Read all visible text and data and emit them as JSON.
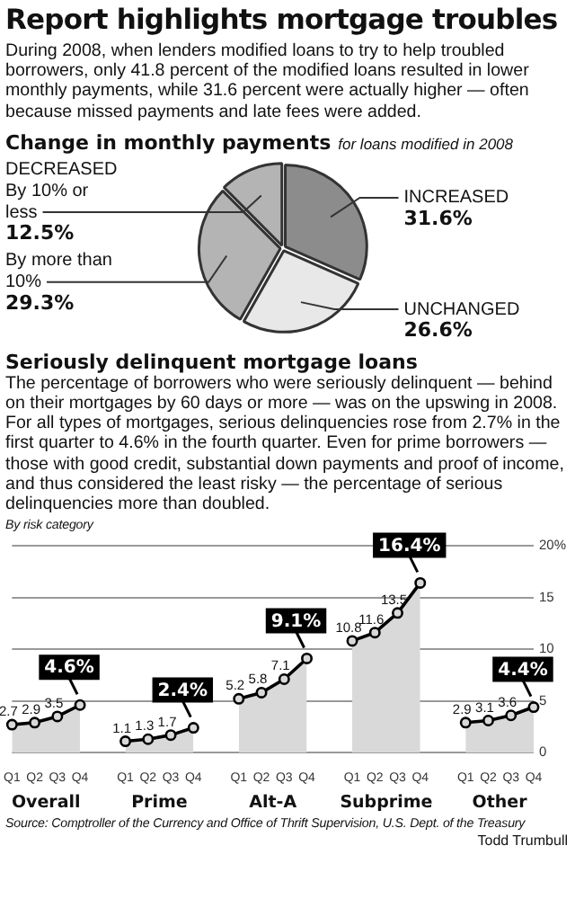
{
  "chart_data": [
    {
      "type": "pie",
      "title": "Report highlights mortgage troubles",
      "subtitle": "During 2008, when lenders modified loans to try to help troubled borrowers, only 41.8 percent of the modified loans resulted in lower monthly payments, while 31.6 percent were actually higher — often because missed payments and late fees were added.",
      "annotations": [
        "Change in monthly payments",
        "for loans modified in 2008",
        "DECREASED"
      ],
      "categories": [
        "INCREASED",
        "UNCHANGED",
        "By more than 10%",
        "By 10% or less"
      ],
      "values": [
        31.6,
        26.6,
        29.3,
        12.5
      ],
      "value_labels": [
        "31.6%",
        "26.6%",
        "29.3%",
        "12.5%"
      ],
      "colors": [
        "#8c8c8c",
        "#e8e8e8",
        "#b4b4b4",
        "#b4b4b4"
      ],
      "legend": false
    },
    {
      "type": "area",
      "title": "Seriously delinquent mortgage loans",
      "subtitle": "The percentage of borrowers who were seriously delinquent — behind on their mortgages by 60 days or more — was on the upswing in 2008. For all types of mortgages, serious delinquencies rose from 2.7% in the first quarter to 4.6% in the fourth quarter. Even for prime borrowers — those with good credit, substantial down payments and proof of income, and thus considered the least risky — the percentage of serious delinquencies more than doubled.",
      "annotations": [
        "By risk category",
        "Source: Comptroller of the Currency and Office of Thrift Supervision, U.S. Dept. of the Treasury",
        "Todd Trumbull"
      ],
      "categories": [
        "Q1",
        "Q2",
        "Q3",
        "Q4",
        null,
        "Q1",
        "Q2",
        "Q3",
        "Q4",
        null,
        "Q1",
        "Q2",
        "Q3",
        "Q4",
        null,
        "Q1",
        "Q2",
        "Q3",
        "Q4",
        null,
        "Q1",
        "Q2",
        "Q3",
        "Q4"
      ],
      "series": [
        {
          "name": "Overall",
          "color": "#d9d9d9",
          "values": [
            2.7,
            2.9,
            3.5,
            4.6,
            null,
            null,
            null,
            null,
            null,
            null,
            null,
            null,
            null,
            null,
            null,
            null,
            null,
            null,
            null,
            null,
            null,
            null,
            null,
            null
          ],
          "value_labels": [
            "2.7",
            "2.9",
            "3.5",
            "4.6%",
            null,
            null,
            null,
            null,
            null,
            null,
            null,
            null,
            null,
            null,
            null,
            null,
            null,
            null,
            null,
            null,
            null,
            null,
            null,
            null
          ]
        },
        {
          "name": "Prime",
          "color": "#d9d9d9",
          "values": [
            null,
            null,
            null,
            null,
            null,
            1.1,
            1.3,
            1.7,
            2.4,
            null,
            null,
            null,
            null,
            null,
            null,
            null,
            null,
            null,
            null,
            null,
            null,
            null,
            null,
            null
          ],
          "value_labels": [
            null,
            null,
            null,
            null,
            null,
            "1.1",
            "1.3",
            "1.7",
            "2.4%",
            null,
            null,
            null,
            null,
            null,
            null,
            null,
            null,
            null,
            null,
            null,
            null,
            null,
            null,
            null
          ]
        },
        {
          "name": "Alt-A",
          "color": "#d9d9d9",
          "values": [
            null,
            null,
            null,
            null,
            null,
            null,
            null,
            null,
            null,
            null,
            5.2,
            5.8,
            7.1,
            9.1,
            null,
            null,
            null,
            null,
            null,
            null,
            null,
            null,
            null,
            null
          ],
          "value_labels": [
            null,
            null,
            null,
            null,
            null,
            null,
            null,
            null,
            null,
            null,
            "5.2",
            "5.8",
            "7.1",
            "9.1%",
            null,
            null,
            null,
            null,
            null,
            null,
            null,
            null,
            null,
            null
          ]
        },
        {
          "name": "Subprime",
          "color": "#d9d9d9",
          "values": [
            null,
            null,
            null,
            null,
            null,
            null,
            null,
            null,
            null,
            null,
            null,
            null,
            null,
            null,
            null,
            10.8,
            11.6,
            13.5,
            16.4,
            null,
            null,
            null,
            null,
            null
          ],
          "value_labels": [
            null,
            null,
            null,
            null,
            null,
            null,
            null,
            null,
            null,
            null,
            null,
            null,
            null,
            null,
            null,
            "10.8",
            "11.6",
            "13.5",
            "16.4%",
            null,
            null,
            null,
            null,
            null
          ]
        },
        {
          "name": "Other",
          "color": "#d9d9d9",
          "values": [
            null,
            null,
            null,
            null,
            null,
            null,
            null,
            null,
            null,
            null,
            null,
            null,
            null,
            null,
            null,
            null,
            null,
            null,
            null,
            null,
            2.9,
            3.1,
            3.6,
            4.4
          ],
          "value_labels": [
            null,
            null,
            null,
            null,
            null,
            null,
            null,
            null,
            null,
            null,
            null,
            null,
            null,
            null,
            null,
            null,
            null,
            null,
            null,
            null,
            "2.9",
            "3.1",
            "3.6",
            "4.4%"
          ]
        }
      ],
      "ylim": [
        0,
        20
      ],
      "yticks": [
        0,
        5,
        10,
        15,
        {
          "value": 20,
          "label": "20%"
        }
      ],
      "grid": "y",
      "marker": "circle",
      "legend": false
    }
  ]
}
